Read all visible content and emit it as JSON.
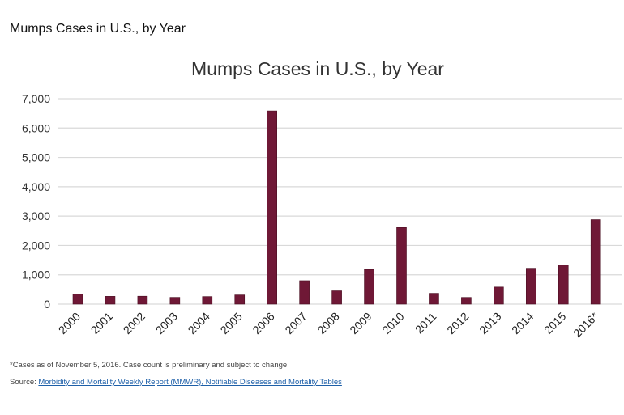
{
  "page_title": "Mumps Cases in U.S., by Year",
  "footnote": "*Cases as of November 5, 2016. Case count is preliminary and subject to change.",
  "source_label": "Source:",
  "source_link": "Morbidity and Mortality Weekly Report (MMWR), Notifiable Diseases and Mortality Tables",
  "colors": {
    "bar": "#6f1836",
    "grid": "#d9d9d9",
    "link": "#1d5fa8"
  },
  "chart_data": {
    "type": "bar",
    "title": "Mumps Cases in U.S., by Year",
    "xlabel": "",
    "ylabel": "",
    "categories": [
      "2000",
      "2001",
      "2002",
      "2003",
      "2004",
      "2005",
      "2006",
      "2007",
      "2008",
      "2009",
      "2010",
      "2011",
      "2012",
      "2013",
      "2014",
      "2015",
      "2016*"
    ],
    "values": [
      338,
      266,
      270,
      231,
      258,
      314,
      6584,
      800,
      454,
      1180,
      2612,
      370,
      229,
      584,
      1223,
      1329,
      2879
    ],
    "ylim": [
      0,
      7000
    ],
    "yticks": [
      0,
      1000,
      2000,
      3000,
      4000,
      5000,
      6000,
      7000
    ],
    "ytick_labels": [
      "0",
      "1,000",
      "2,000",
      "3,000",
      "4,000",
      "5,000",
      "6,000",
      "7,000"
    ],
    "grid": true,
    "legend": "none"
  }
}
